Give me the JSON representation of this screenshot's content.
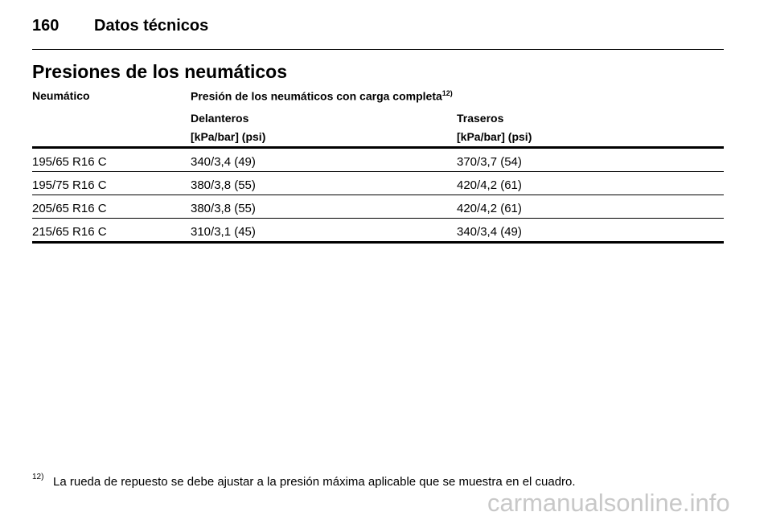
{
  "header": {
    "page_number": "160",
    "section": "Datos técnicos"
  },
  "title": "Presiones de los neumáticos",
  "table": {
    "columns": {
      "tire": "Neumático",
      "pressure": "Presión de los neumáticos con carga completa",
      "pressure_note": "12)",
      "front": "Delanteros",
      "front_unit": "[kPa/bar] (psi)",
      "rear": "Traseros",
      "rear_unit": "[kPa/bar] (psi)"
    },
    "rows": [
      [
        "195/65 R16 C",
        "340/3,4 (49)",
        "370/3,7 (54)"
      ],
      [
        "195/75 R16 C",
        "380/3,8 (55)",
        "420/4,2 (61)"
      ],
      [
        "205/65 R16 C",
        "380/3,8 (55)",
        "420/4,2 (61)"
      ],
      [
        "215/65 R16 C",
        "310/3,1 (45)",
        "340/3,4 (49)"
      ]
    ]
  },
  "footnote": {
    "mark": "12)",
    "text": "La rueda de repuesto se debe ajustar a la presión máxima aplicable que se muestra en el cuadro."
  },
  "watermark": "carmanualsonline.info"
}
